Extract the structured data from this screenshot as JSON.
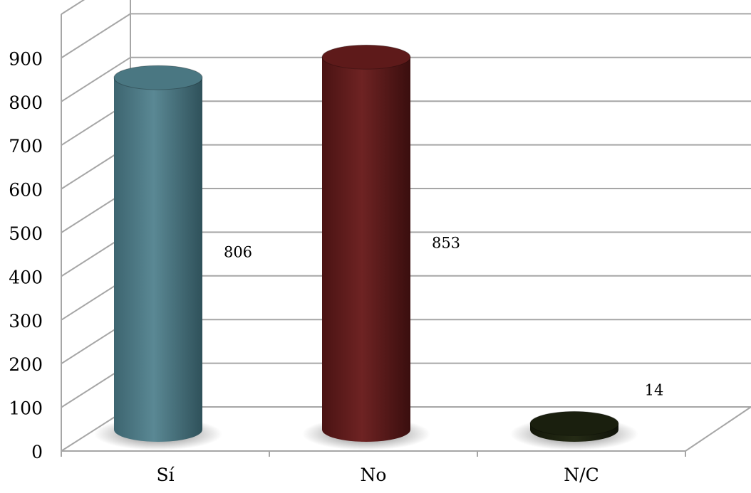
{
  "chart_data": {
    "type": "bar",
    "style": "3d-cylinder",
    "categories": [
      "Sí",
      "No",
      "N/C"
    ],
    "values": [
      806,
      853,
      14
    ],
    "data_labels": [
      "806",
      "853",
      "14"
    ],
    "colors": [
      "#4a7782",
      "#5e1a1a",
      "#1a1f0e"
    ],
    "ylim": [
      0,
      900
    ],
    "yticks": [
      "0",
      "100",
      "200",
      "300",
      "400",
      "500",
      "600",
      "700",
      "800",
      "900"
    ],
    "grid": true,
    "legend": "none"
  }
}
